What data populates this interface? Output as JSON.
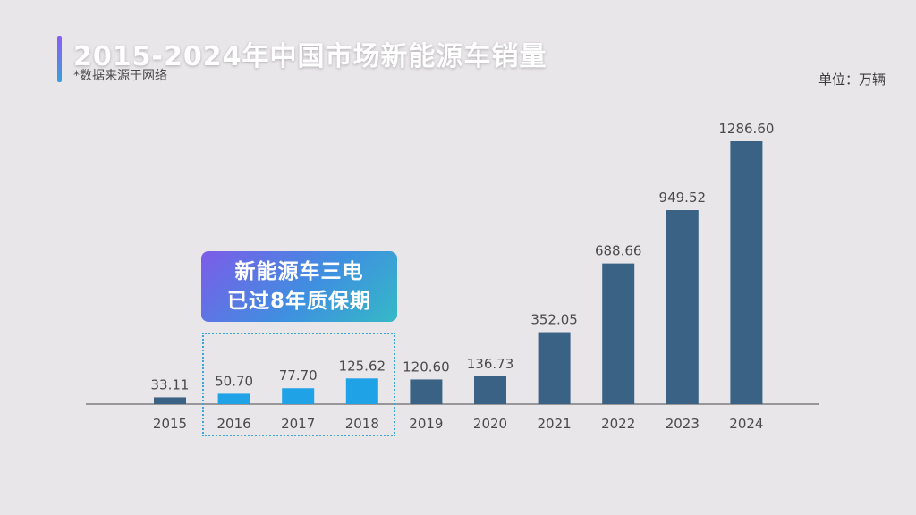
{
  "header": {
    "title": "2015-2024年中国市场新能源车销量",
    "subtitle": "*数据来源于网络",
    "unit": "单位：万辆"
  },
  "callout": {
    "line1": "新能源车三电",
    "line2": "已过8年质保期"
  },
  "colors": {
    "bar_default": "#3a6285",
    "bar_highlight": "#1fa2e6",
    "callout_gradient": [
      "#7c5ce8",
      "#3f8fe0",
      "#35b9c7"
    ],
    "box_border": "#3aa6d6"
  },
  "chart_data": {
    "type": "bar",
    "categories": [
      "2015",
      "2016",
      "2017",
      "2018",
      "2019",
      "2020",
      "2021",
      "2022",
      "2023",
      "2024"
    ],
    "values": [
      33.11,
      50.7,
      77.7,
      125.62,
      120.6,
      136.73,
      352.05,
      688.66,
      949.52,
      1286.6
    ],
    "labels": [
      "33.11",
      "50.70",
      "77.70",
      "125.62",
      "120.60",
      "136.73",
      "352.05",
      "688.66",
      "949.52",
      "1286.60"
    ],
    "highlighted_categories": [
      "2016",
      "2017",
      "2018"
    ],
    "title": "2015-2024年中国市场新能源车销量",
    "xlabel": "",
    "ylabel": "",
    "unit": "万辆",
    "ylim": [
      0,
      1286.6
    ],
    "grid": false,
    "legend": "none"
  }
}
